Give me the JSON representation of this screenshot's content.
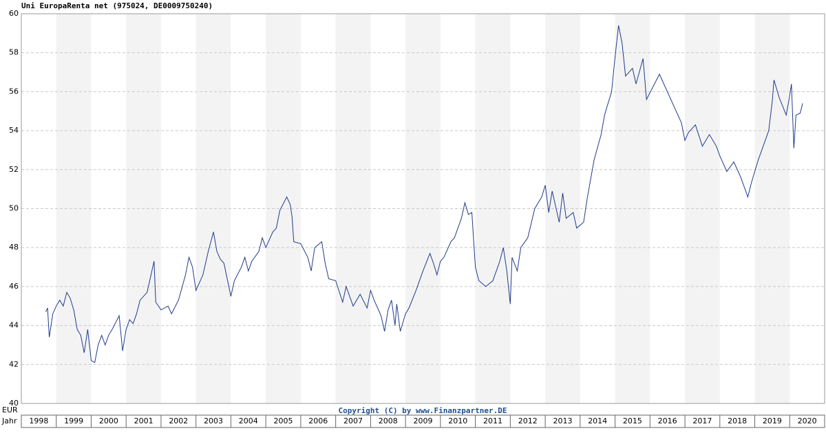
{
  "chart_data": {
    "type": "line",
    "title": "Uni EuropaRenta net (975024, DE0009750240)",
    "y_label": "EUR",
    "x_label": "Jahr",
    "annotation": "Copyright (C) by www.Finanzpartner.DE",
    "xlim": [
      1998,
      2021
    ],
    "xticks": [
      1998,
      1999,
      2000,
      2001,
      2002,
      2003,
      2004,
      2005,
      2006,
      2007,
      2008,
      2009,
      2010,
      2011,
      2012,
      2013,
      2014,
      2015,
      2016,
      2017,
      2018,
      2019,
      2020
    ],
    "ylim": [
      40,
      60
    ],
    "yticks": [
      40,
      42,
      44,
      46,
      48,
      50,
      52,
      54,
      56,
      58,
      60
    ],
    "grid": true,
    "x": [
      1998.7,
      1998.75,
      1998.8,
      1998.9,
      1999.0,
      1999.1,
      1999.2,
      1999.3,
      1999.4,
      1999.5,
      1999.6,
      1999.7,
      1999.8,
      1999.9,
      2000.0,
      2000.1,
      2000.2,
      2000.3,
      2000.4,
      2000.5,
      2000.6,
      2000.8,
      2000.9,
      2001.0,
      2001.1,
      2001.2,
      2001.3,
      2001.4,
      2001.6,
      2001.8,
      2001.85,
      2002.0,
      2002.2,
      2002.3,
      2002.5,
      2002.7,
      2002.8,
      2002.9,
      2003.0,
      2003.2,
      2003.35,
      2003.5,
      2003.6,
      2003.7,
      2003.8,
      2004.0,
      2004.1,
      2004.3,
      2004.4,
      2004.5,
      2004.6,
      2004.8,
      2004.9,
      2005.0,
      2005.2,
      2005.3,
      2005.4,
      2005.6,
      2005.7,
      2005.75,
      2005.8,
      2006.0,
      2006.2,
      2006.3,
      2006.4,
      2006.6,
      2006.7,
      2006.8,
      2007.0,
      2007.2,
      2007.3,
      2007.5,
      2007.7,
      2007.9,
      2008.0,
      2008.1,
      2008.3,
      2008.4,
      2008.5,
      2008.6,
      2008.7,
      2008.75,
      2008.85,
      2009.0,
      2009.1,
      2009.3,
      2009.5,
      2009.7,
      2009.8,
      2009.9,
      2010.0,
      2010.1,
      2010.3,
      2010.4,
      2010.6,
      2010.7,
      2010.8,
      2010.9,
      2011.0,
      2011.1,
      2011.3,
      2011.5,
      2011.7,
      2011.8,
      2011.9,
      2012.0,
      2012.05,
      2012.2,
      2012.3,
      2012.5,
      2012.7,
      2012.9,
      2013.0,
      2013.1,
      2013.2,
      2013.4,
      2013.5,
      2013.6,
      2013.8,
      2013.9,
      2014.1,
      2014.2,
      2014.4,
      2014.6,
      2014.7,
      2014.9,
      2015.0,
      2015.1,
      2015.2,
      2015.3,
      2015.5,
      2015.6,
      2015.8,
      2015.9,
      2016.1,
      2016.27,
      2016.9,
      2017.0,
      2017.1,
      2017.3,
      2017.5,
      2017.7,
      2017.9,
      2018.0,
      2018.2,
      2018.4,
      2018.6,
      2018.8,
      2018.9,
      2019.1,
      2019.2,
      2019.4,
      2019.5,
      2019.55,
      2019.7,
      2019.9,
      2020.0,
      2020.05,
      2020.12,
      2020.18,
      2020.3,
      2020.37
    ],
    "series": [
      {
        "name": "Uni EuropaRenta net",
        "color": "#1f3a8a",
        "values": [
          44.7,
          44.9,
          43.4,
          44.6,
          45.0,
          45.3,
          45.0,
          45.7,
          45.4,
          44.8,
          43.8,
          43.5,
          42.6,
          43.8,
          42.2,
          42.1,
          43.0,
          43.5,
          43.0,
          43.5,
          43.8,
          44.5,
          42.7,
          43.8,
          44.3,
          44.1,
          44.6,
          45.3,
          45.7,
          47.3,
          45.2,
          44.8,
          45.0,
          44.6,
          45.3,
          46.6,
          47.5,
          47.0,
          45.8,
          46.6,
          47.8,
          48.8,
          47.8,
          47.4,
          47.2,
          45.5,
          46.3,
          47.0,
          47.5,
          46.8,
          47.3,
          47.8,
          48.5,
          48.0,
          48.8,
          49.0,
          49.9,
          50.6,
          50.2,
          49.6,
          48.3,
          48.2,
          47.5,
          46.8,
          48.0,
          48.3,
          47.2,
          46.4,
          46.3,
          45.2,
          46.0,
          45.0,
          45.6,
          44.9,
          45.8,
          45.3,
          44.5,
          43.7,
          44.8,
          45.3,
          44.0,
          45.1,
          43.7,
          44.6,
          44.9,
          45.8,
          46.8,
          47.7,
          47.2,
          46.6,
          47.3,
          47.5,
          48.3,
          48.5,
          49.5,
          50.3,
          49.7,
          49.8,
          47.0,
          46.3,
          46.0,
          46.3,
          47.3,
          48.0,
          46.8,
          45.1,
          47.5,
          46.8,
          48.0,
          48.5,
          50.0,
          50.6,
          51.2,
          49.8,
          50.9,
          49.3,
          50.8,
          49.5,
          49.8,
          49.0,
          49.3,
          50.5,
          52.5,
          53.8,
          54.8,
          56.0,
          57.8,
          59.4,
          58.5,
          56.8,
          57.2,
          56.4,
          57.7,
          55.6,
          56.3,
          56.9,
          54.4,
          53.5,
          53.9,
          54.3,
          53.2,
          53.8,
          53.2,
          52.7,
          51.9,
          52.4,
          51.6,
          50.6,
          51.3,
          52.5,
          53.0,
          54.0,
          55.5,
          56.6,
          55.7,
          54.8,
          55.8,
          56.4,
          53.1,
          54.8,
          54.9,
          55.4
        ]
      }
    ]
  }
}
